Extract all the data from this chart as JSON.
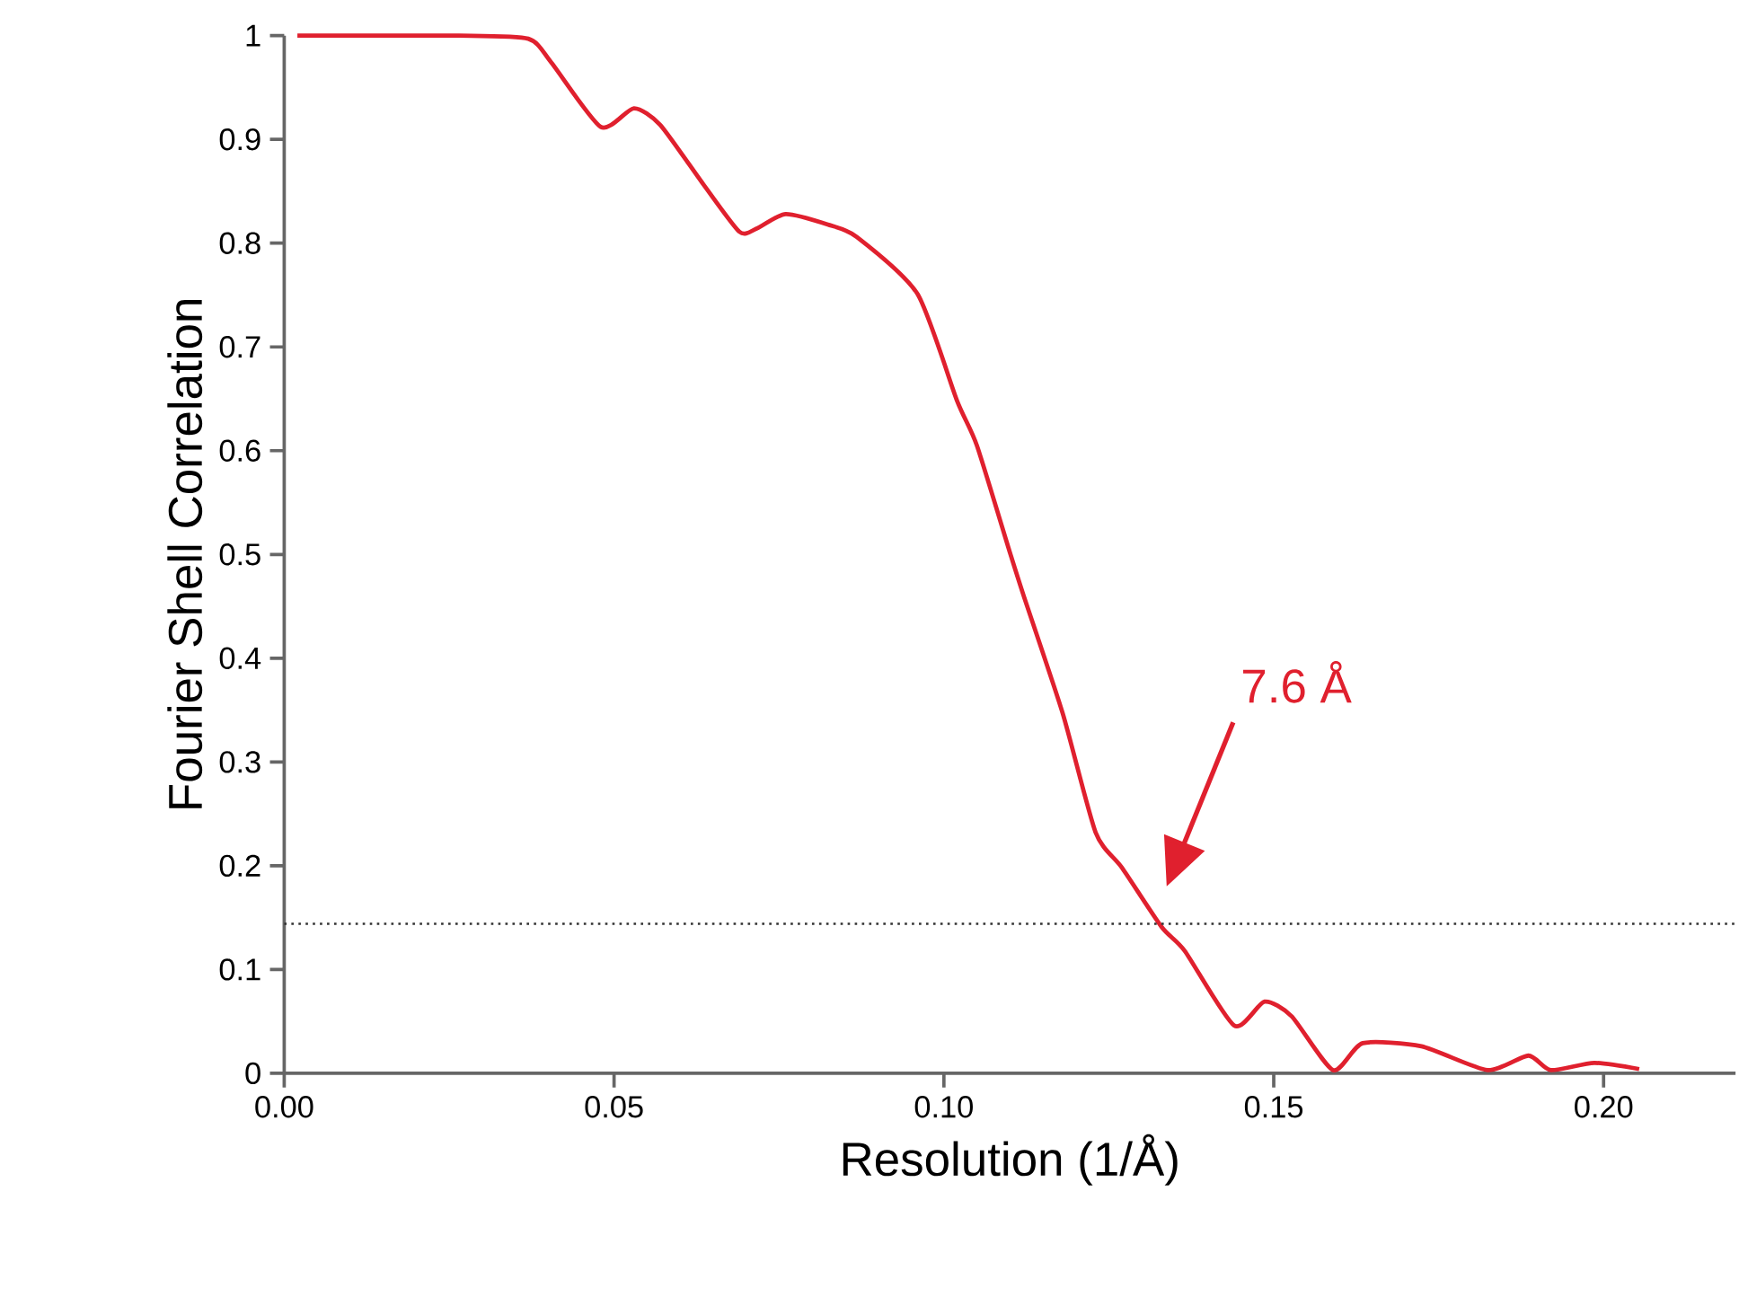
{
  "chart_data": {
    "type": "line",
    "xlabel": "Resolution (1/Å)",
    "ylabel": "Fourier Shell Correlation",
    "x": [
      0.002,
      0.0265,
      0.037,
      0.0405,
      0.048,
      0.053,
      0.057,
      0.0635,
      0.069,
      0.0716,
      0.076,
      0.0824,
      0.0868,
      0.096,
      0.102,
      0.105,
      0.11,
      0.112,
      0.118,
      0.123,
      0.127,
      0.133,
      0.1365,
      0.144,
      0.1486,
      0.1527,
      0.159,
      0.1635,
      0.1724,
      0.1824,
      0.1886,
      0.192,
      0.1986,
      0.2054
    ],
    "series": [
      {
        "color": "#e0202e",
        "values": [
          1.0,
          1.0,
          0.997,
          0.974,
          0.912,
          0.93,
          0.914,
          0.857,
          0.811,
          0.814,
          0.828,
          0.818,
          0.806,
          0.751,
          0.648,
          0.605,
          0.502,
          0.462,
          0.347,
          0.232,
          0.198,
          0.141,
          0.118,
          0.046,
          0.069,
          0.055,
          0.003,
          0.029,
          0.026,
          0.003,
          0.017,
          0.003,
          0.01,
          0.004
        ]
      }
    ],
    "xlim": [
      0,
      0.22
    ],
    "ylim": [
      0,
      1
    ],
    "xticks": [
      {
        "value": 0,
        "label": "0.00"
      },
      {
        "value": 0.05,
        "label": "0.05"
      },
      {
        "value": 0.1,
        "label": "0.10"
      },
      {
        "value": 0.15,
        "label": "0.15"
      },
      {
        "value": 0.2,
        "label": "0.20"
      }
    ],
    "yticks": [
      0,
      0.1,
      0.2,
      0.3,
      0.4,
      0.5,
      0.6,
      0.7,
      0.8,
      0.9,
      1
    ],
    "ref_lines": [
      {
        "axis": "y",
        "value": 0.144,
        "color": "#333333",
        "line_style": "dotted"
      }
    ],
    "annotations": [
      "7.6 Å"
    ],
    "grid": false,
    "marker": "none",
    "line_style": "solid"
  }
}
